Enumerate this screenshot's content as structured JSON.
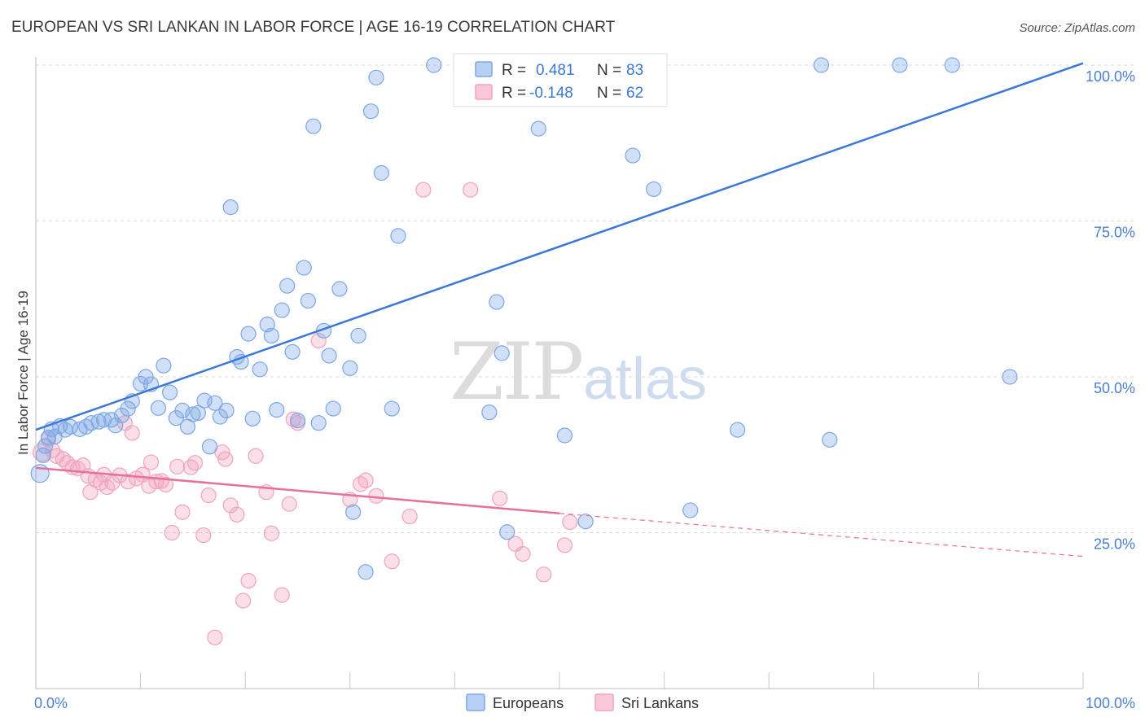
{
  "header": {
    "title": "EUROPEAN VS SRI LANKAN IN LABOR FORCE | AGE 16-19 CORRELATION CHART",
    "source": "Source: ZipAtlas.com"
  },
  "watermark": {
    "zip": "ZIP",
    "atlas": "atlas"
  },
  "colors": {
    "europeans": "#7ba7e6",
    "europeans_line": "#3b78d8",
    "srilankans": "#f1a3bd",
    "srilankans_line": "#e8709a",
    "grid": "#d8d8d8",
    "tick_text": "#4a7fd0"
  },
  "legend": {
    "r_label": "R =",
    "n_label": "N =",
    "europeans": {
      "r": "0.481",
      "n": "83"
    },
    "srilankans": {
      "r": "-0.148",
      "n": "62"
    }
  },
  "bottom_legend": {
    "europeans": "Europeans",
    "srilankans": "Sri Lankans"
  },
  "chart_data": {
    "type": "scatter",
    "title": "EUROPEAN VS SRI LANKAN IN LABOR FORCE | AGE 16-19 CORRELATION CHART",
    "xlabel": "",
    "ylabel": "In Labor Force | Age 16-19",
    "xlim": [
      0,
      100
    ],
    "ylim": [
      0,
      102
    ],
    "x_tick_labels": [
      "0.0%",
      "100.0%"
    ],
    "y_ticks": [
      25,
      50,
      75,
      100
    ],
    "y_tick_labels": [
      "25.0%",
      "50.0%",
      "75.0%",
      "100.0%"
    ],
    "grid": true,
    "legend_position": "top-center",
    "series": [
      {
        "name": "Europeans",
        "trend": {
          "x0": 0,
          "y0": 41.5,
          "x1": 100,
          "y1": 100.3
        },
        "points": [
          [
            0.4,
            34.5,
            11
          ],
          [
            0.7,
            37.4,
            9
          ],
          [
            0.9,
            38.9,
            9
          ],
          [
            1.2,
            40.3,
            9
          ],
          [
            1.5,
            41.6,
            9
          ],
          [
            1.8,
            40.4,
            9
          ],
          [
            2.3,
            42.1,
            9
          ],
          [
            2.8,
            41.5,
            9
          ],
          [
            3.3,
            42.0,
            9
          ],
          [
            4.2,
            41.6,
            9
          ],
          [
            4.8,
            42.0,
            9
          ],
          [
            5.3,
            42.6,
            9
          ],
          [
            6.0,
            42.8,
            9
          ],
          [
            6.5,
            43.1,
            9
          ],
          [
            7.2,
            43.1,
            9
          ],
          [
            7.6,
            42.2,
            9
          ],
          [
            8.2,
            43.8,
            9
          ],
          [
            8.8,
            44.9,
            9
          ],
          [
            9.2,
            46.1,
            9
          ],
          [
            10.0,
            48.9,
            9
          ],
          [
            10.5,
            50.0,
            9
          ],
          [
            11.0,
            48.8,
            9
          ],
          [
            11.7,
            45.0,
            9
          ],
          [
            12.2,
            51.8,
            9
          ],
          [
            12.8,
            47.5,
            9
          ],
          [
            13.4,
            43.4,
            9
          ],
          [
            14.0,
            44.6,
            9
          ],
          [
            14.5,
            42.0,
            9
          ],
          [
            15.0,
            44.0,
            9
          ],
          [
            15.5,
            44.2,
            9
          ],
          [
            16.1,
            46.2,
            9
          ],
          [
            16.6,
            38.8,
            9
          ],
          [
            17.1,
            45.8,
            9
          ],
          [
            17.6,
            43.6,
            9
          ],
          [
            18.2,
            44.6,
            9
          ],
          [
            18.6,
            77.2,
            9
          ],
          [
            19.2,
            53.2,
            9
          ],
          [
            19.6,
            52.4,
            9
          ],
          [
            20.3,
            56.9,
            9
          ],
          [
            20.7,
            43.3,
            9
          ],
          [
            21.4,
            51.2,
            9
          ],
          [
            22.1,
            58.4,
            9
          ],
          [
            22.5,
            56.6,
            9
          ],
          [
            23.0,
            44.7,
            9
          ],
          [
            23.5,
            60.7,
            9
          ],
          [
            24.0,
            64.6,
            9
          ],
          [
            24.5,
            54.0,
            9
          ],
          [
            25.0,
            43.0,
            9
          ],
          [
            25.6,
            67.5,
            9
          ],
          [
            26.0,
            62.2,
            9
          ],
          [
            26.5,
            90.2,
            9
          ],
          [
            27.0,
            42.6,
            9
          ],
          [
            27.5,
            57.4,
            9
          ],
          [
            28.0,
            53.4,
            9
          ],
          [
            28.4,
            44.9,
            9
          ],
          [
            29.0,
            64.1,
            9
          ],
          [
            30.0,
            51.4,
            9
          ],
          [
            30.3,
            28.3,
            9
          ],
          [
            30.8,
            56.6,
            9
          ],
          [
            31.5,
            18.7,
            9
          ],
          [
            32.0,
            92.6,
            9
          ],
          [
            32.5,
            98.0,
            9
          ],
          [
            33.0,
            82.7,
            9
          ],
          [
            34.0,
            44.9,
            9
          ],
          [
            34.6,
            72.6,
            9
          ],
          [
            38.0,
            100.0,
            9
          ],
          [
            41.5,
            100.0,
            9
          ],
          [
            43.3,
            44.3,
            9
          ],
          [
            44.0,
            62.0,
            9
          ],
          [
            44.5,
            53.8,
            9
          ],
          [
            45.0,
            25.1,
            9
          ],
          [
            47.5,
            100.0,
            9
          ],
          [
            48.0,
            89.8,
            9
          ],
          [
            50.5,
            40.6,
            9
          ],
          [
            52.5,
            26.8,
            9
          ],
          [
            57.0,
            85.5,
            9
          ],
          [
            59.0,
            80.1,
            9
          ],
          [
            62.5,
            28.6,
            9
          ],
          [
            67.0,
            41.5,
            9
          ],
          [
            75.0,
            100.0,
            9
          ],
          [
            75.8,
            39.9,
            9
          ],
          [
            82.5,
            100.0,
            9
          ],
          [
            87.5,
            100.0,
            9
          ],
          [
            93.0,
            50.0,
            9
          ]
        ]
      },
      {
        "name": "Sri Lankans",
        "trend": {
          "x0": 0,
          "y0": 35.4,
          "x1": 50,
          "y1": 28.1,
          "dash_x1": 100,
          "dash_y1": 21.2
        },
        "points": [
          [
            0.6,
            37.9,
            11
          ],
          [
            1.2,
            40.0,
            9
          ],
          [
            1.6,
            38.2,
            9
          ],
          [
            2.0,
            37.3,
            9
          ],
          [
            2.6,
            36.8,
            9
          ],
          [
            3.0,
            36.2,
            9
          ],
          [
            3.5,
            35.5,
            9
          ],
          [
            4.0,
            35.3,
            9
          ],
          [
            4.5,
            35.8,
            9
          ],
          [
            5.0,
            34.1,
            9
          ],
          [
            5.2,
            31.5,
            9
          ],
          [
            5.7,
            33.5,
            9
          ],
          [
            6.2,
            33.0,
            9
          ],
          [
            6.5,
            34.3,
            9
          ],
          [
            6.8,
            32.3,
            9
          ],
          [
            7.3,
            33.0,
            9
          ],
          [
            8.0,
            34.2,
            9
          ],
          [
            8.5,
            42.6,
            9
          ],
          [
            8.8,
            33.2,
            9
          ],
          [
            9.2,
            41.0,
            9
          ],
          [
            9.6,
            33.7,
            9
          ],
          [
            10.2,
            34.3,
            9
          ],
          [
            10.8,
            32.5,
            9
          ],
          [
            11.0,
            36.3,
            9
          ],
          [
            11.5,
            33.2,
            9
          ],
          [
            12.0,
            33.3,
            9
          ],
          [
            12.4,
            32.7,
            9
          ],
          [
            13.0,
            25.0,
            9
          ],
          [
            13.5,
            35.6,
            9
          ],
          [
            14.0,
            28.3,
            9
          ],
          [
            14.8,
            35.5,
            9
          ],
          [
            15.2,
            36.2,
            9
          ],
          [
            16.0,
            24.6,
            9
          ],
          [
            16.5,
            31.0,
            9
          ],
          [
            17.1,
            8.2,
            9
          ],
          [
            17.8,
            37.9,
            9
          ],
          [
            18.1,
            36.8,
            9
          ],
          [
            18.6,
            29.4,
            9
          ],
          [
            19.2,
            27.9,
            9
          ],
          [
            19.8,
            14.1,
            9
          ],
          [
            20.3,
            17.3,
            9
          ],
          [
            21.0,
            37.3,
            9
          ],
          [
            22.0,
            31.5,
            9
          ],
          [
            22.5,
            24.9,
            9
          ],
          [
            23.5,
            15.0,
            9
          ],
          [
            24.2,
            29.6,
            9
          ],
          [
            24.6,
            43.2,
            9
          ],
          [
            25.0,
            42.6,
            9
          ],
          [
            27.0,
            55.8,
            9
          ],
          [
            30.0,
            30.3,
            9
          ],
          [
            31.0,
            32.8,
            9
          ],
          [
            31.5,
            33.4,
            9
          ],
          [
            32.5,
            30.9,
            9
          ],
          [
            34.0,
            20.4,
            9
          ],
          [
            35.7,
            27.6,
            9
          ],
          [
            37.0,
            80.0,
            9
          ],
          [
            41.5,
            80.0,
            9
          ],
          [
            44.3,
            30.5,
            9
          ],
          [
            45.8,
            23.2,
            9
          ],
          [
            46.5,
            21.6,
            9
          ],
          [
            48.5,
            18.3,
            9
          ],
          [
            50.5,
            23.0,
            9
          ],
          [
            51.0,
            26.7,
            9
          ]
        ]
      }
    ]
  }
}
